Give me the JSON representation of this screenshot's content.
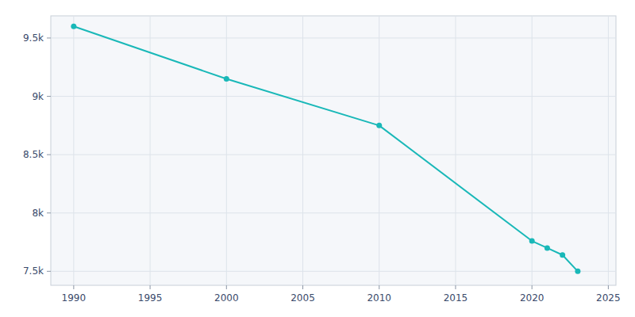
{
  "chart_data": {
    "type": "line",
    "x": [
      1990,
      2000,
      2010,
      2020,
      2021,
      2022,
      2023
    ],
    "values": [
      9600,
      9150,
      8750,
      7760,
      7700,
      7640,
      7500
    ],
    "color": "#19b8b8",
    "marker": "circle",
    "xlim": [
      1988.5,
      2025.5
    ],
    "ylim": [
      7380,
      9690
    ],
    "xticks": [
      1990,
      1995,
      2000,
      2005,
      2010,
      2015,
      2020,
      2025
    ],
    "yticks": [
      {
        "value": 7500,
        "label": "7.5k"
      },
      {
        "value": 8000,
        "label": "8k"
      },
      {
        "value": 8500,
        "label": "8.5k"
      },
      {
        "value": 9000,
        "label": "9k"
      },
      {
        "value": 9500,
        "label": "9.5k"
      }
    ],
    "grid": true
  }
}
